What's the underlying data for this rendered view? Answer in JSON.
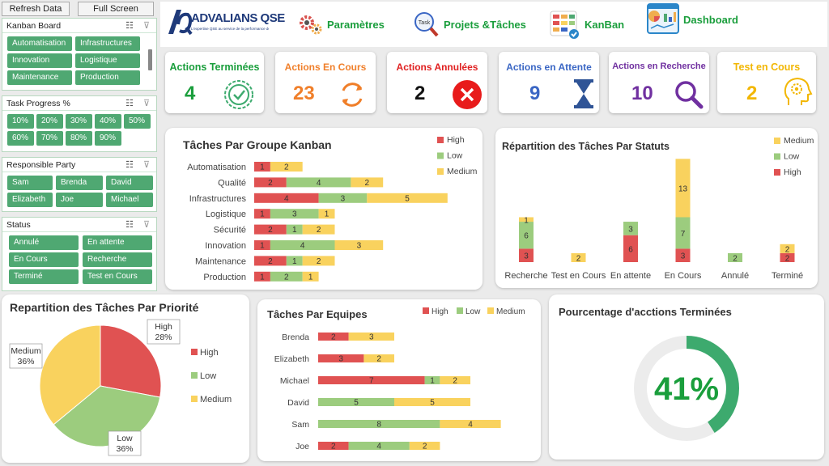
{
  "toolbar": {
    "refresh_label": "Refresh Data",
    "fullscreen_label": "Full Screen"
  },
  "slicers": {
    "kanban": {
      "title": "Kanban Board",
      "items": [
        "Automatisation",
        "Infrastructures",
        "Innovation",
        "Logistique",
        "Maintenance",
        "Production"
      ]
    },
    "progress": {
      "title": "Task Progress %",
      "items": [
        "10%",
        "20%",
        "30%",
        "40%",
        "50%",
        "60%",
        "70%",
        "80%",
        "90%"
      ]
    },
    "responsible": {
      "title": "Responsible Party",
      "items": [
        "Sam",
        "Brenda",
        "David",
        "Elizabeth",
        "Joe",
        "Michael"
      ]
    },
    "status": {
      "title": "Status",
      "items": [
        "Annulé",
        "En attente",
        "En Cours",
        "Recherche",
        "Terminé",
        "Test en Cours"
      ]
    }
  },
  "header": {
    "logo_text": "ADVALIANS QSE",
    "logo_tagline": "L'expertise QSE au service de la performance des entreprises",
    "nav": {
      "params": "Paramètres",
      "projects": "Projets &Tâches",
      "kanban": "KanBan",
      "dashboard": "Dashboard"
    }
  },
  "kpis": {
    "done": {
      "label": "Actions Terminées",
      "value": "4",
      "color": "#1a9e3c"
    },
    "inprogress": {
      "label": "Actions En Cours",
      "value": "23",
      "color": "#f07f2a"
    },
    "cancelled": {
      "label": "Actions Annulées",
      "value": "2",
      "color": "#e02020"
    },
    "waiting": {
      "label": "Actions en Attente",
      "value": "9",
      "color": "#3a66c4"
    },
    "research": {
      "label": "Actions en Recherche",
      "value": "10",
      "color": "#7030a0"
    },
    "testing": {
      "label": "Test en Cours",
      "value": "2",
      "color": "#f2b705"
    }
  },
  "colors": {
    "high": "#e05252",
    "low": "#9ccc7e",
    "medium": "#f9d25e",
    "accent": "#1a9e3c",
    "donut": "#3daa6e"
  },
  "panels": {
    "kanban_group": {
      "title": "Tâches Par Groupe Kanban"
    },
    "status": {
      "title": "Répartition des Tâches Par Statuts"
    },
    "priority": {
      "title": "Repartition des Tâches Par Priorité"
    },
    "teams": {
      "title": "Tâches Par Equipes"
    },
    "percent": {
      "title": "Pourcentage d'acctions Terminées"
    }
  },
  "chart_data": [
    {
      "id": "kanban_group",
      "type": "bar",
      "orientation": "horizontal",
      "stacked": true,
      "categories": [
        "Automatisation",
        "Qualité",
        "Infrastructures",
        "Logistique",
        "Sécurité",
        "Innovation",
        "Maintenance",
        "Production"
      ],
      "series": [
        {
          "name": "High",
          "values": [
            1,
            2,
            4,
            1,
            2,
            1,
            2,
            1
          ]
        },
        {
          "name": "Low",
          "values": [
            0,
            4,
            3,
            3,
            1,
            4,
            1,
            2
          ]
        },
        {
          "name": "Medium",
          "values": [
            2,
            2,
            5,
            1,
            2,
            3,
            2,
            1
          ]
        }
      ],
      "legend_order": [
        "High",
        "Low",
        "Medium"
      ],
      "legend_position": "top-right"
    },
    {
      "id": "status",
      "type": "bar",
      "orientation": "vertical",
      "stacked": true,
      "categories": [
        "Recherche",
        "Test en Cours",
        "En attente",
        "En Cours",
        "Annulé",
        "Terminé"
      ],
      "series": [
        {
          "name": "High",
          "values": [
            3,
            0,
            6,
            3,
            0,
            2
          ]
        },
        {
          "name": "Low",
          "values": [
            6,
            0,
            3,
            7,
            2,
            0
          ]
        },
        {
          "name": "Medium",
          "values": [
            1,
            2,
            0,
            13,
            0,
            2
          ]
        }
      ],
      "legend_order": [
        "Medium",
        "Low",
        "High"
      ],
      "legend_position": "top-right"
    },
    {
      "id": "priority",
      "type": "pie",
      "slices": [
        {
          "name": "High",
          "value": 28,
          "label": "High\n28%"
        },
        {
          "name": "Low",
          "value": 36,
          "label": "Low\n36%"
        },
        {
          "name": "Medium",
          "value": 36,
          "label": "Medium\n36%"
        }
      ],
      "legend_order": [
        "High",
        "Low",
        "Medium"
      ],
      "legend_position": "right"
    },
    {
      "id": "teams",
      "type": "bar",
      "orientation": "horizontal",
      "stacked": true,
      "categories": [
        "Brenda",
        "Elizabeth",
        "Michael",
        "David",
        "Sam",
        "Joe"
      ],
      "series": [
        {
          "name": "High",
          "values": [
            2,
            3,
            7,
            0,
            0,
            2
          ]
        },
        {
          "name": "Low",
          "values": [
            0,
            0,
            1,
            5,
            8,
            4
          ]
        },
        {
          "name": "Medium",
          "values": [
            3,
            2,
            2,
            5,
            4,
            2
          ]
        }
      ],
      "legend_order": [
        "High",
        "Low",
        "Medium"
      ],
      "legend_position": "top-right"
    },
    {
      "id": "percent",
      "type": "pie",
      "variant": "donut",
      "value": 41,
      "label": "41%"
    }
  ]
}
